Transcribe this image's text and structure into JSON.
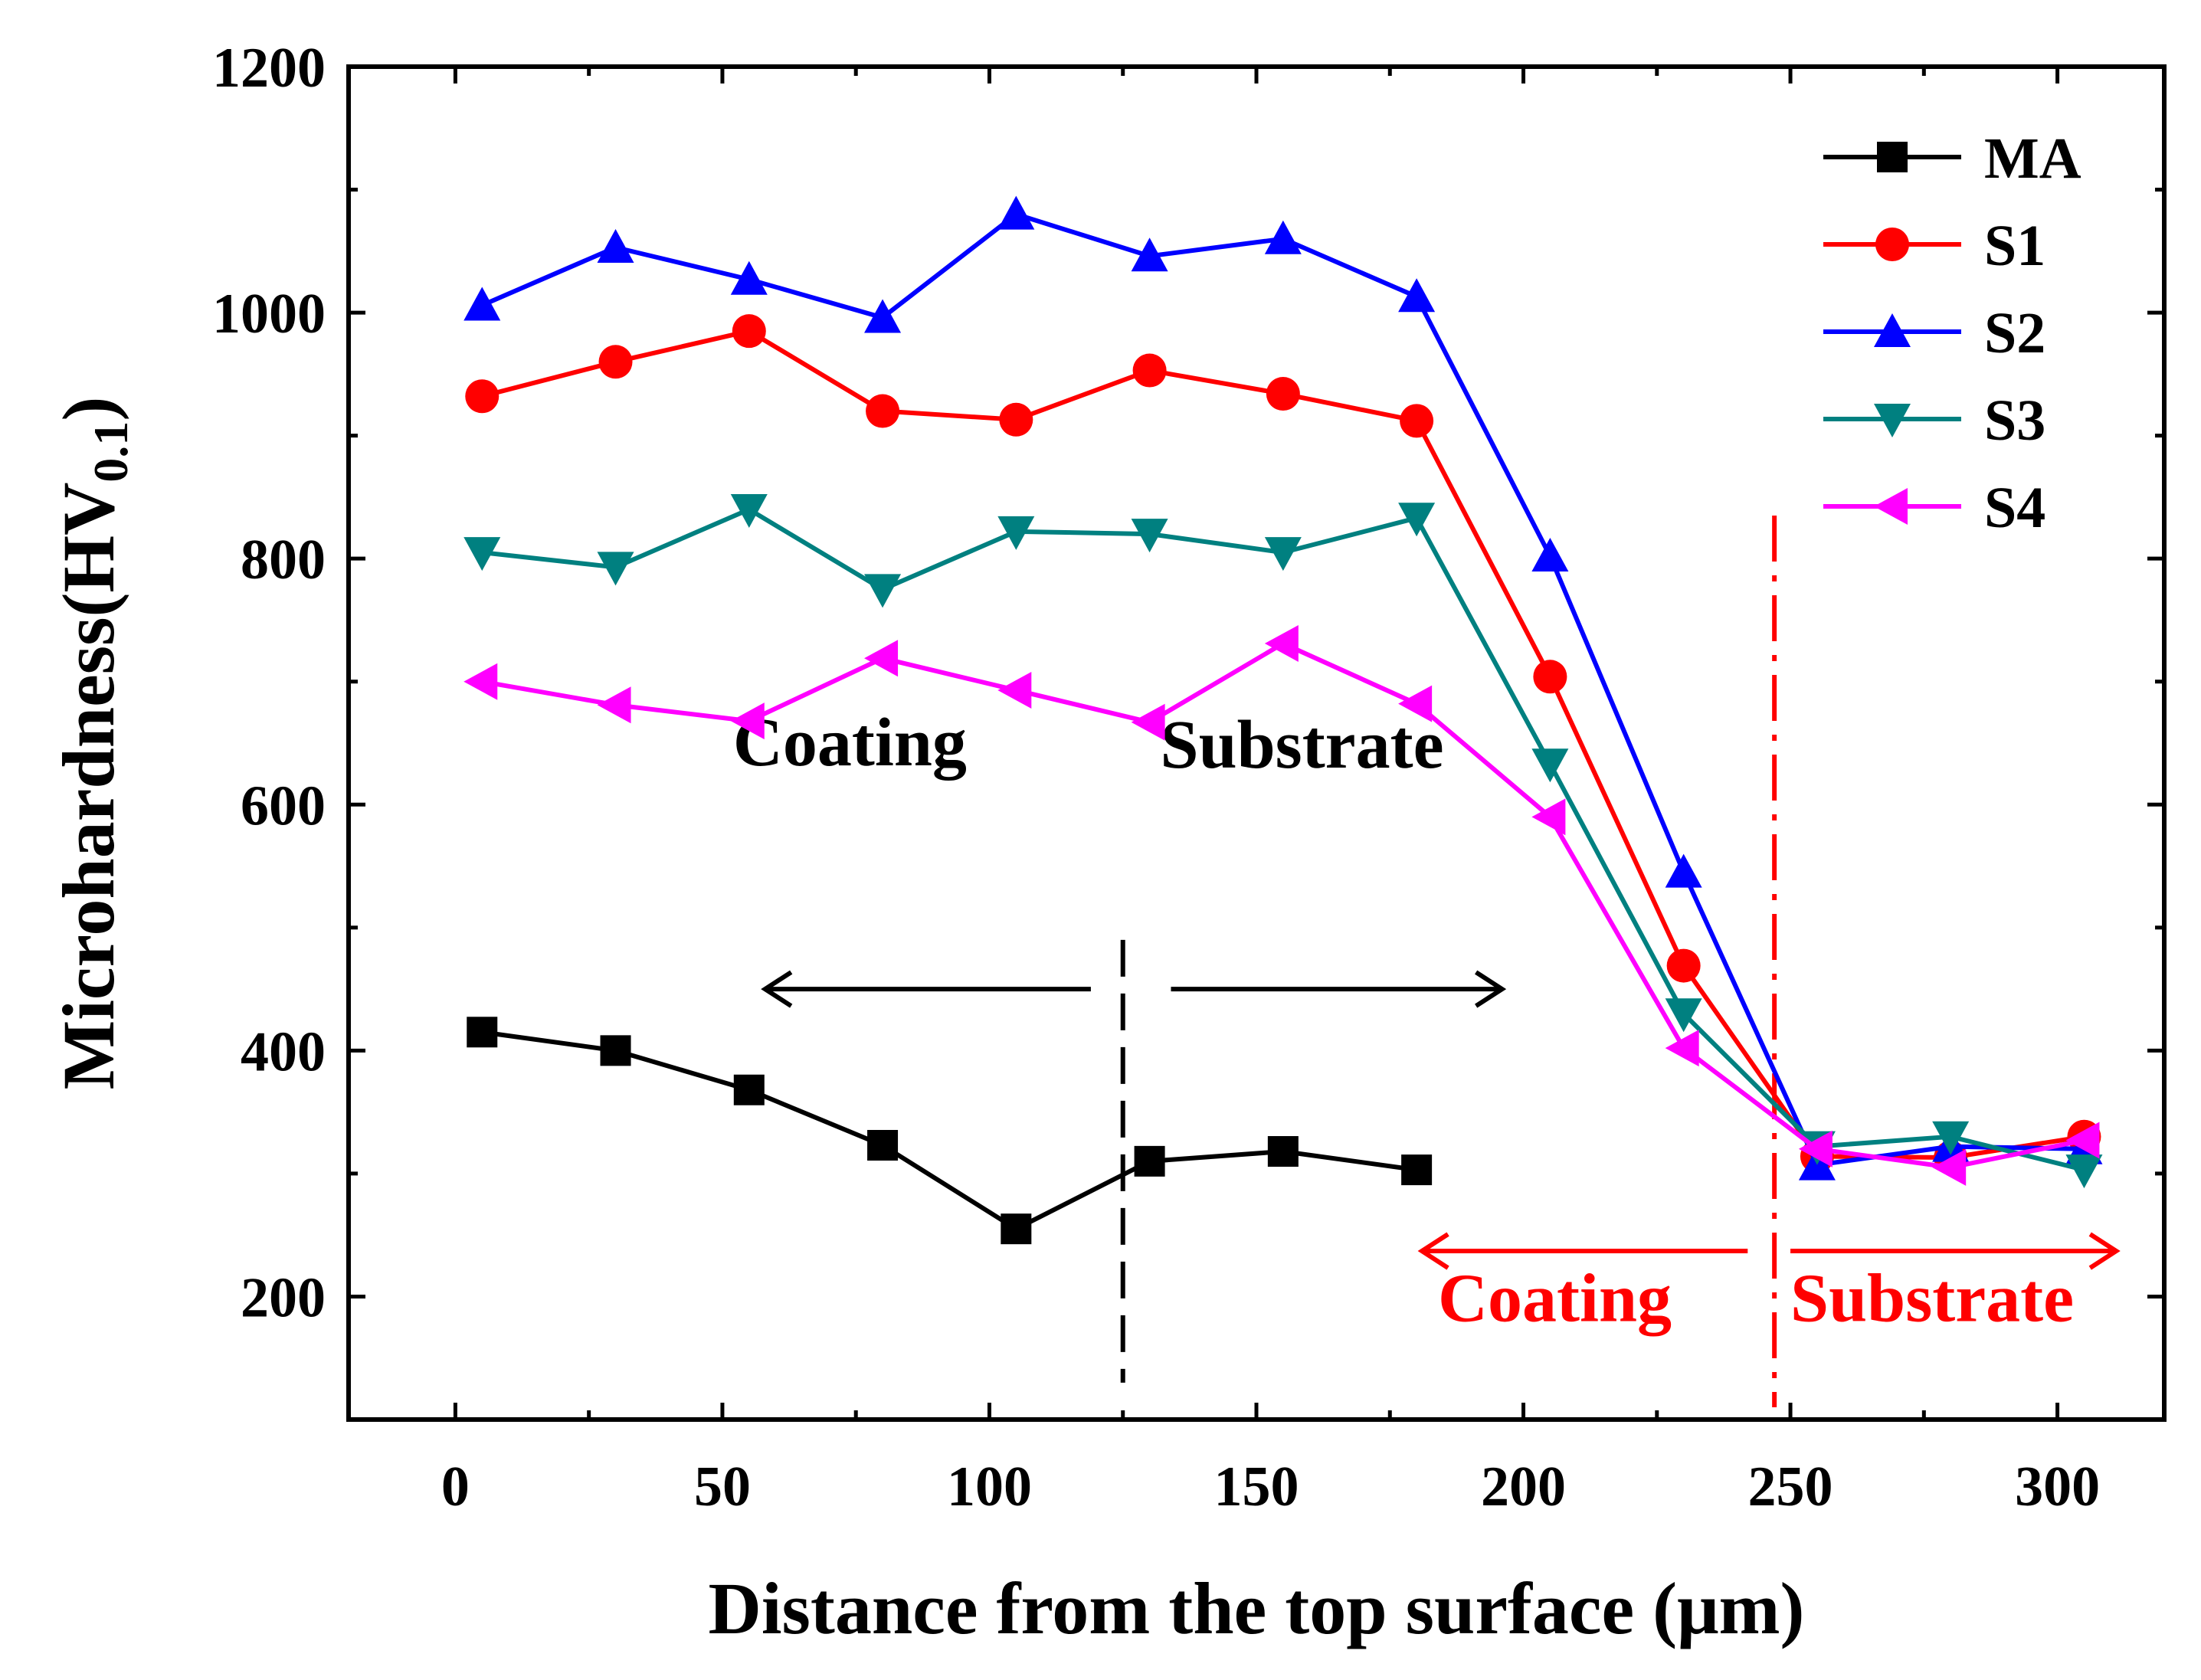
{
  "chart_data": {
    "type": "line",
    "title": "",
    "xlabel": "Distance from the top surface (μm)",
    "ylabel_main": "Microhardness(HV",
    "ylabel_sub": "0.1",
    "ylabel_close": ")",
    "xlim": [
      -20,
      320
    ],
    "ylim": [
      100,
      1200
    ],
    "xticks": [
      0,
      50,
      100,
      150,
      200,
      250,
      300
    ],
    "yticks": [
      200,
      400,
      600,
      800,
      1000,
      1200
    ],
    "legend_position": "top-right",
    "series": [
      {
        "name": "MA",
        "color": "#000000",
        "marker": "square",
        "x": [
          5,
          30,
          55,
          80,
          105,
          130,
          155,
          180
        ],
        "y": [
          415,
          400,
          368,
          323,
          255,
          310,
          318,
          303
        ]
      },
      {
        "name": "S1",
        "color": "#ff0000",
        "marker": "circle",
        "x": [
          5,
          30,
          55,
          80,
          105,
          130,
          155,
          180,
          205,
          230,
          255,
          280,
          305
        ],
        "y": [
          932,
          960,
          985,
          920,
          913,
          953,
          934,
          912,
          704,
          469,
          314,
          313,
          330
        ]
      },
      {
        "name": "S2",
        "color": "#0000ff",
        "marker": "triangle-up",
        "x": [
          5,
          30,
          55,
          80,
          105,
          130,
          155,
          180,
          205,
          230,
          255,
          280,
          305
        ],
        "y": [
          1006,
          1053,
          1027,
          996,
          1080,
          1046,
          1060,
          1013,
          802,
          545,
          307,
          322,
          320
        ]
      },
      {
        "name": "S3",
        "color": "#008080",
        "marker": "triangle-down",
        "x": [
          5,
          30,
          55,
          80,
          105,
          130,
          155,
          180,
          205,
          230,
          255,
          280,
          305
        ],
        "y": [
          805,
          793,
          840,
          775,
          822,
          820,
          805,
          833,
          633,
          430,
          322,
          330,
          303
        ]
      },
      {
        "name": "S4",
        "color": "#ff00ff",
        "marker": "triangle-left",
        "x": [
          5,
          30,
          55,
          80,
          105,
          130,
          155,
          180,
          205,
          230,
          255,
          280,
          305
        ],
        "y": [
          700,
          681,
          668,
          719,
          693,
          667,
          731,
          682,
          590,
          402,
          320,
          305,
          327
        ]
      }
    ],
    "annotations": [
      {
        "text": "Coating",
        "color": "#000000",
        "arrow": "left",
        "region": "MA coating"
      },
      {
        "text": "Substrate",
        "color": "#000000",
        "arrow": "right",
        "region": "MA substrate"
      },
      {
        "text": "Coating",
        "color": "#ff0000",
        "arrow": "left",
        "region": "S1-S4 coating"
      },
      {
        "text": "Substrate",
        "color": "#ff0000",
        "arrow": "right",
        "region": "S1-S4 substrate"
      }
    ],
    "boundaries": [
      {
        "x": 125,
        "color": "#000000",
        "style": "dashed"
      },
      {
        "x": 247,
        "color": "#ff0000",
        "style": "dash-dot"
      }
    ]
  }
}
